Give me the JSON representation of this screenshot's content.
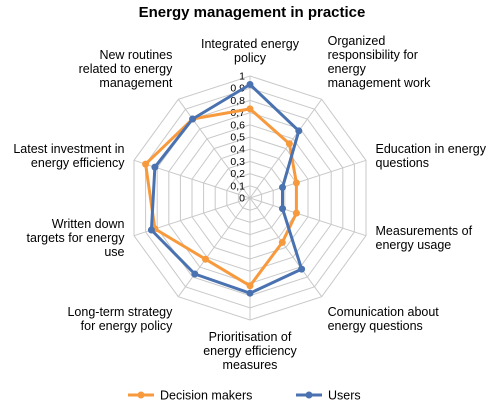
{
  "chart_data": {
    "type": "radar",
    "title": "Energy management in practice",
    "categories": [
      [
        "Integrated energy",
        "policy"
      ],
      [
        "Organized",
        "responsibility for",
        "energy",
        "management work"
      ],
      [
        "Education in energy",
        "questions"
      ],
      [
        "Measurements of",
        "energy usage"
      ],
      [
        "Comunication about",
        "energy questions"
      ],
      [
        "Prioritisation of",
        "energy efficiency",
        "measures"
      ],
      [
        "Long-term strategy",
        "for energy policy"
      ],
      [
        "Written down",
        "targets for energy",
        "use"
      ],
      [
        "Latest investment in",
        "energy efficiency"
      ],
      [
        "New routines",
        "related to energy",
        "management"
      ]
    ],
    "rlim": [
      0,
      1
    ],
    "ticks": [
      "0",
      "0,1",
      "0,2",
      "0,3",
      "0,4",
      "0,5",
      "0,6",
      "0,7",
      "0,8",
      "0,9",
      "1"
    ],
    "tick_values": [
      0,
      0.1,
      0.2,
      0.3,
      0.4,
      0.5,
      0.6,
      0.7,
      0.8,
      0.9,
      1
    ],
    "series": [
      {
        "name": "Decision makers",
        "color": "#F79A3E",
        "values": [
          0.73,
          0.55,
          0.4,
          0.4,
          0.45,
          0.72,
          0.62,
          0.82,
          0.9,
          0.8
        ]
      },
      {
        "name": "Users",
        "color": "#4A72B0",
        "values": [
          0.93,
          0.68,
          0.28,
          0.28,
          0.72,
          0.78,
          0.77,
          0.85,
          0.82,
          0.8
        ]
      }
    ],
    "legend_position": "bottom",
    "grid": true
  }
}
